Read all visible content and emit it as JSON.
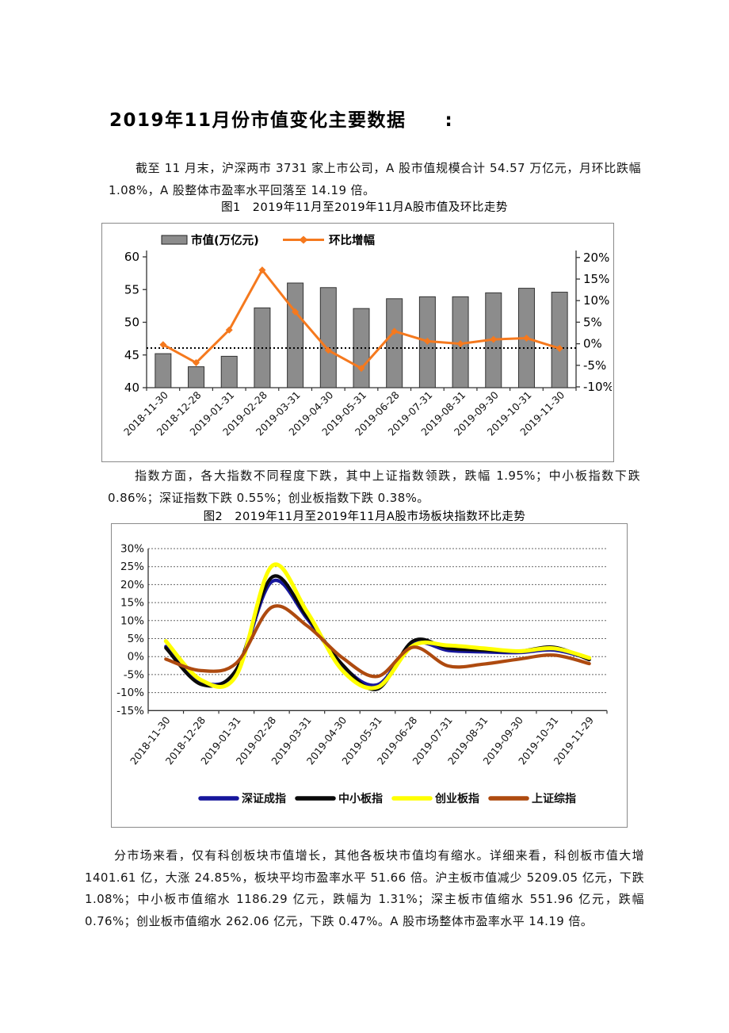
{
  "title": "2019年11月份市值变化主要数据　　:",
  "paragraph1": "截至 11 月末，沪深两市 3731 家上市公司，A 股市值规模合计 54.57 万亿元，月环比跌幅 1.08%，A 股整体市盈率水平回落至 14.19 倍。",
  "figure1_caption": "图1　2019年11月至2019年11月A股市值及环比走势",
  "paragraph2": "指数方面，各大指数不同程度下跌，其中上证指数领跌，跌幅 1.95%；中小板指数下跌 0.86%；深证指数下跌 0.55%；创业板指数下跌 0.38%。",
  "figure2_caption": "图2　2019年11月至2019年11月A股市场板块指数环比走势",
  "paragraph3": "分市场来看，仅有科创板块市值增长，其他各板块市值均有缩水。详细来看，科创板市值大增 1401.61 亿，大涨 24.85%，板块平均市盈率水平 51.66 倍。沪主板市值减少 5209.05 亿元，下跌 1.08%；中小板市值缩水 1186.29 亿元，跌幅为 1.31%；深主板市值缩水 551.96 亿元，跌幅 0.76%；创业板市值缩水 262.06 亿元，下跌 0.47%。A 股市场整体市盈率水平 14.19 倍。",
  "chart_data": [
    {
      "type": "bar",
      "title": "A股市值及环比走势",
      "categories": [
        "2018-11-30",
        "2018-12-28",
        "2019-01-31",
        "2019-02-28",
        "2019-03-31",
        "2019-04-30",
        "2019-05-31",
        "2019-06-28",
        "2019-07-31",
        "2019-08-31",
        "2019-09-30",
        "2019-10-31",
        "2019-11-30"
      ],
      "series": [
        {
          "name": "市值(万亿元)",
          "type": "bar",
          "axis": "left",
          "color": "#8C8C8C",
          "values": [
            45.2,
            43.2,
            44.8,
            52.2,
            56.0,
            55.3,
            52.1,
            53.6,
            53.9,
            53.9,
            54.5,
            55.2,
            54.6
          ]
        },
        {
          "name": "环比增幅",
          "type": "line",
          "axis": "right",
          "color": "#F5791E",
          "values": [
            -0.2,
            -4.4,
            3.2,
            17.1,
            7.4,
            -1.5,
            -5.7,
            2.9,
            0.6,
            0.0,
            1.0,
            1.3,
            -1.08
          ]
        }
      ],
      "left_axis": {
        "min": 40,
        "max": 60,
        "step": 5,
        "labels": [
          "40",
          "45",
          "50",
          "55",
          "60"
        ]
      },
      "right_axis": {
        "min": -10,
        "max": 20,
        "step": 5,
        "labels": [
          "-10%",
          "-5%",
          "0%",
          "5%",
          "10%",
          "15%",
          "20%"
        ]
      },
      "reference_line": {
        "value": -1.0,
        "style": "dotted",
        "color": "#000000"
      },
      "legend_position": "top",
      "grid": "off"
    },
    {
      "type": "line",
      "title": "A股市场板块指数环比走势",
      "categories": [
        "2018-11-30",
        "2018-12-28",
        "2019-01-31",
        "2019-02-28",
        "2019-03-31",
        "2019-04-30",
        "2019-05-31",
        "2019-06-28",
        "2019-07-31",
        "2019-08-31",
        "2019-09-30",
        "2019-10-31",
        "2019-11-29"
      ],
      "series": [
        {
          "name": "深证成指",
          "color": "#16169C",
          "values": [
            2.8,
            -7.0,
            -4.0,
            20.8,
            10.6,
            -2.5,
            -7.8,
            3.5,
            1.7,
            1.3,
            1.1,
            1.8,
            -0.55
          ]
        },
        {
          "name": "中小板指",
          "color": "#0A0A0A",
          "values": [
            2.4,
            -7.7,
            -3.6,
            22.0,
            11.2,
            -2.2,
            -9.0,
            4.3,
            2.3,
            1.8,
            1.5,
            2.6,
            -0.86
          ]
        },
        {
          "name": "创业板指",
          "color": "#FFFF00",
          "values": [
            4.3,
            -6.5,
            -5.2,
            25.1,
            12.5,
            -3.8,
            -8.5,
            3.0,
            3.1,
            2.3,
            1.5,
            2.3,
            -0.38
          ]
        },
        {
          "name": "上证综指",
          "color": "#AE4A0F",
          "values": [
            -0.7,
            -3.9,
            -1.8,
            13.7,
            8.6,
            -0.3,
            -5.5,
            2.6,
            -2.6,
            -2.1,
            -0.7,
            0.4,
            -1.95
          ]
        }
      ],
      "y_axis": {
        "min": -15,
        "max": 30,
        "step": 5,
        "labels": [
          "-15%",
          "-10%",
          "-5%",
          "0%",
          "5%",
          "10%",
          "15%",
          "20%",
          "25%",
          "30%"
        ]
      },
      "grid": "dotted-horizontal",
      "smooth": true,
      "legend_position": "bottom"
    }
  ]
}
